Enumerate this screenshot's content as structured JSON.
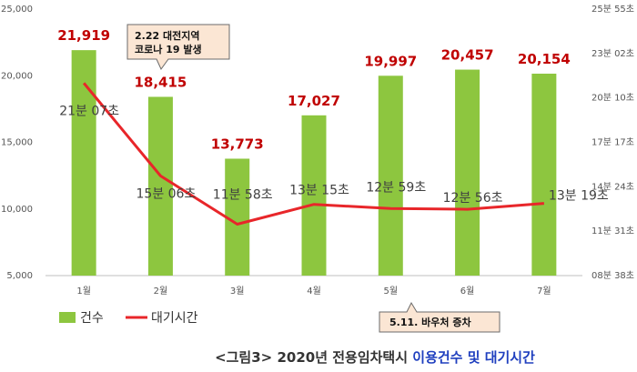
{
  "chart_data": {
    "type": "bar+line",
    "categories": [
      "1월",
      "2월",
      "3월",
      "4월",
      "5월",
      "6월",
      "7월"
    ],
    "series": [
      {
        "name": "건수",
        "type": "bar",
        "axis": "left",
        "values": [
          21919,
          18415,
          13773,
          17027,
          19997,
          20457,
          20154
        ],
        "labels": [
          "21,919",
          "18,415",
          "13,773",
          "17,027",
          "19,997",
          "20,457",
          "20,154"
        ],
        "color": "#8dc63f"
      },
      {
        "name": "대기시간",
        "type": "line",
        "axis": "right",
        "values_seconds": [
          1267,
          906,
          718,
          795,
          779,
          776,
          799
        ],
        "labels": [
          "21분 07초",
          "15분 06초",
          "11분 58초",
          "13분 15초",
          "12분 59초",
          "12분 56초",
          "13분 19초"
        ],
        "color": "#e8262a"
      }
    ],
    "ylim_left": [
      5000,
      25000
    ],
    "left_ticks": [
      {
        "value": 5000,
        "label": "5,000"
      },
      {
        "value": 10000,
        "label": "10,000"
      },
      {
        "value": 15000,
        "label": "15,000"
      },
      {
        "value": 20000,
        "label": "20,000"
      },
      {
        "value": 25000,
        "label": "25,000"
      }
    ],
    "right_ticks": [
      {
        "label": "08분 38초"
      },
      {
        "label": "11분 31초"
      },
      {
        "label": "14분 24초"
      },
      {
        "label": "17분 17초"
      },
      {
        "label": "20분 10초"
      },
      {
        "label": "23분 02초"
      },
      {
        "label": "25분 55초"
      }
    ],
    "annotations": [
      {
        "text_lines": [
          "2.22 대전지역",
          "코로나 19 발생"
        ],
        "category": "2월"
      },
      {
        "text_lines": [
          "5.11. 바우처 증차"
        ],
        "category": "5월"
      }
    ],
    "legend": {
      "placement": "bottom-left"
    },
    "grid": false
  },
  "caption": {
    "prefix": "<그림3> 2020년 전용임차택시 ",
    "highlight": "이용건수 및 대기시간",
    "highlight_color": "#1f3fbf"
  }
}
